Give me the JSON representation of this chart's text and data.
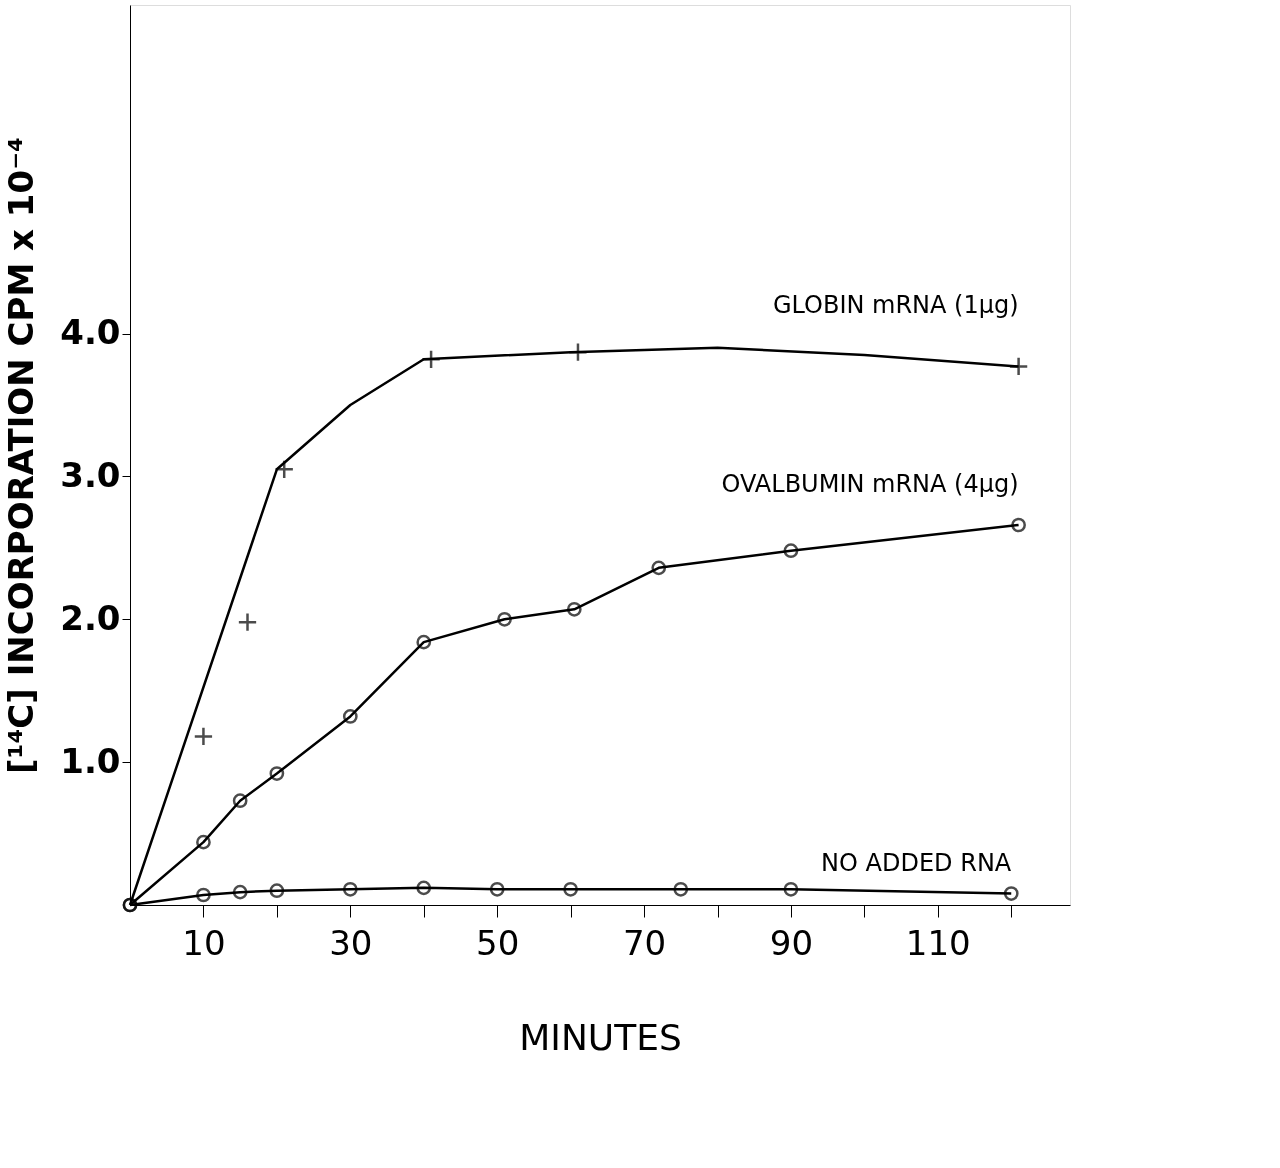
{
  "chart_data": {
    "type": "line",
    "xlabel": "MINUTES",
    "ylabel": "[¹⁴C] INCORPORATION  CPM x 10⁻⁴",
    "xlim": [
      0,
      128
    ],
    "ylim": [
      0,
      6.3
    ],
    "xticks": [
      10,
      {
        "value": 20,
        "label": null
      },
      30,
      {
        "value": 40,
        "label": null
      },
      50,
      {
        "value": 60,
        "label": null
      },
      70,
      {
        "value": 80,
        "label": null
      },
      90,
      {
        "value": 100,
        "label": null
      },
      110,
      {
        "value": 120,
        "label": null
      }
    ],
    "yticks": [
      {
        "value": 1,
        "label": "1.0"
      },
      {
        "value": 2,
        "label": "2.0"
      },
      {
        "value": 3,
        "label": "3.0"
      },
      {
        "value": 4,
        "label": "4.0"
      }
    ],
    "grid": false,
    "line_style": "solid",
    "series": [
      {
        "color": "#000000",
        "marker": "none",
        "x": [
          0,
          20,
          30,
          40,
          60,
          80,
          100,
          121
        ],
        "values": [
          0,
          3.05,
          3.5,
          3.82,
          3.87,
          3.9,
          3.85,
          3.77
        ]
      },
      {
        "type": "scatter",
        "name": "GLOBIN  mRNA (1µg)",
        "color": "#000000",
        "marker": "cross",
        "x": [
          10,
          16,
          21,
          41,
          61,
          121
        ],
        "values": [
          1.18,
          1.98,
          3.05,
          3.82,
          3.87,
          3.77
        ]
      },
      {
        "name": "OVALBUMIN  mRNA (4µg)",
        "color": "#000000",
        "marker": "circle",
        "x": [
          0,
          10,
          15,
          20,
          30,
          40,
          51,
          60.5,
          72,
          90,
          121
        ],
        "values": [
          0,
          0.44,
          0.73,
          0.92,
          1.32,
          1.84,
          2.0,
          2.07,
          2.36,
          2.48,
          2.66
        ]
      },
      {
        "name": "NO  ADDED  RNA",
        "color": "#000000",
        "marker": "circle",
        "x": [
          0,
          10,
          15,
          20,
          30,
          40,
          50,
          60,
          75,
          90,
          120
        ],
        "values": [
          0,
          0.07,
          0.09,
          0.1,
          0.11,
          0.12,
          0.11,
          0.11,
          0.11,
          0.11,
          0.08
        ]
      }
    ]
  }
}
